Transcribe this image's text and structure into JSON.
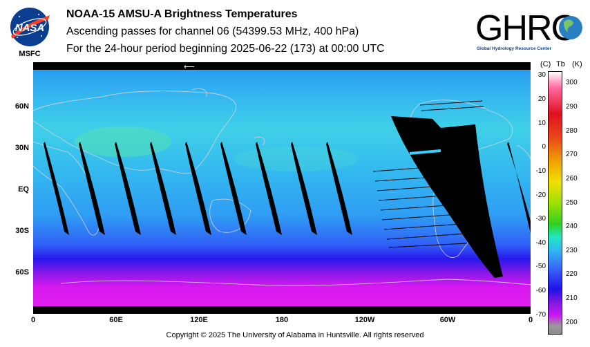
{
  "header": {
    "title": "NOAA-15 AMSU-A Brightness Temperatures",
    "subtitle": "Ascending passes for channel 06 (54399.53 MHz, 400 hPa)",
    "period": "For the 24-hour period beginning 2025-06-22 (173) at 00:00 UTC"
  },
  "logos": {
    "nasa": {
      "wordmark": "NASA",
      "center": "MSFC"
    },
    "ghrc": {
      "wordmark": "GHRC",
      "tagline": "Global Hydrology Resource Center"
    }
  },
  "map": {
    "lat_labels": [
      "60N",
      "30N",
      "EQ",
      "30S",
      "60S"
    ],
    "lon_labels": [
      "0",
      "60E",
      "120E",
      "180",
      "120W",
      "60W",
      "0"
    ]
  },
  "colorbar": {
    "unit_c": "(C)",
    "unit_tb": "Tb",
    "unit_k": "(K)",
    "c_ticks": [
      "30",
      "20",
      "10",
      "0",
      "-10",
      "-20",
      "-30",
      "-40",
      "-50",
      "-60",
      "-70"
    ],
    "k_ticks": [
      "300",
      "290",
      "280",
      "270",
      "260",
      "250",
      "240",
      "230",
      "220",
      "210",
      "200"
    ],
    "range_k": [
      195,
      305
    ],
    "colors": [
      "#ffffff",
      "#ff6aa0",
      "#e01020",
      "#f0a000",
      "#f0e000",
      "#30d020",
      "#20e8c0",
      "#30b8f0",
      "#3868f8",
      "#2010e8",
      "#c818f0",
      "#9a9a9a"
    ]
  },
  "footer": {
    "copyright": "Copyright © 2025 The University of Alabama in Huntsville.  All rights reserved"
  }
}
